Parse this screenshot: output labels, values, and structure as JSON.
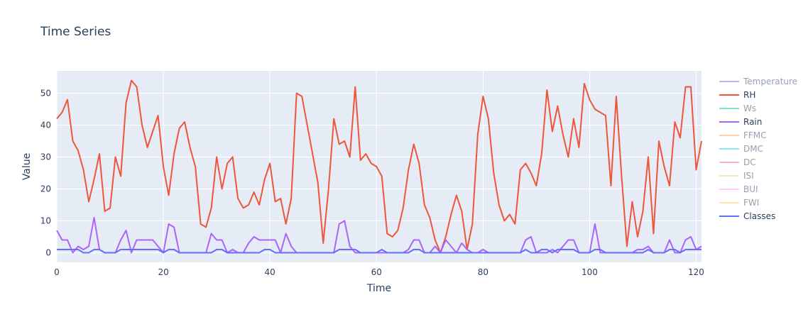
{
  "chart_data": {
    "type": "line",
    "title": "Time Series",
    "xlabel": "Time",
    "ylabel": "Value",
    "xlim": [
      0,
      121
    ],
    "ylim": [
      -3,
      57
    ],
    "xticks": [
      0,
      20,
      40,
      60,
      80,
      100,
      120
    ],
    "yticks": [
      0,
      10,
      20,
      30,
      40,
      50
    ],
    "grid": true,
    "legend_position": "right",
    "series": [
      {
        "name": "Temperature",
        "color": "#636efa",
        "visible": false,
        "values": []
      },
      {
        "name": "RH",
        "color": "#ef553b",
        "visible": true,
        "values": [
          42,
          44,
          48,
          35,
          32,
          26,
          16,
          23,
          31,
          13,
          14,
          30,
          24,
          47,
          54,
          52,
          40,
          33,
          38,
          43,
          27,
          18,
          31,
          39,
          41,
          33,
          27,
          9,
          8,
          14,
          30,
          20,
          28,
          30,
          17,
          14,
          15,
          19,
          15,
          23,
          28,
          16,
          17,
          9,
          17,
          50,
          49,
          40,
          31,
          22,
          3,
          20,
          42,
          34,
          35,
          30,
          52,
          29,
          31,
          28,
          27,
          24,
          6,
          5,
          7,
          14,
          26,
          34,
          28,
          15,
          11,
          4,
          0,
          5,
          12,
          18,
          13,
          1,
          9,
          37,
          49,
          42,
          25,
          15,
          10,
          12,
          9,
          26,
          28,
          25,
          21,
          31,
          51,
          38,
          46,
          37,
          30,
          42,
          33,
          53,
          48,
          45,
          44,
          43,
          21,
          49,
          24,
          2,
          16,
          5,
          13,
          30,
          6,
          35,
          27,
          21,
          41,
          36,
          52,
          52,
          26,
          35
        ]
      },
      {
        "name": "Ws",
        "color": "#00cc96",
        "visible": false,
        "values": []
      },
      {
        "name": "Rain",
        "color": "#ab63fa",
        "visible": true,
        "values": [
          7,
          4,
          4,
          0,
          2,
          1,
          2,
          11,
          1,
          0,
          0,
          0,
          4,
          7,
          0,
          4,
          4,
          4,
          4,
          2,
          0,
          9,
          8,
          0,
          0,
          0,
          0,
          0,
          0,
          6,
          4,
          4,
          0,
          1,
          0,
          0,
          3,
          5,
          4,
          4,
          4,
          4,
          0,
          6,
          2,
          0,
          0,
          0,
          0,
          0,
          0,
          0,
          0,
          9,
          10,
          2,
          0,
          0,
          0,
          0,
          0,
          0,
          0,
          0,
          0,
          0,
          1,
          4,
          4,
          0,
          0,
          2,
          0,
          4,
          2,
          0,
          3,
          1,
          0,
          0,
          1,
          0,
          0,
          0,
          0,
          0,
          0,
          0,
          4,
          5,
          0,
          0,
          0,
          1,
          0,
          2,
          4,
          4,
          0,
          0,
          0,
          9,
          0,
          0,
          0,
          0,
          0,
          0,
          0,
          1,
          1,
          2,
          0,
          0,
          0,
          4,
          0,
          0,
          4,
          5,
          1,
          2
        ]
      },
      {
        "name": "FFMC",
        "color": "#ffa15a",
        "visible": false,
        "values": []
      },
      {
        "name": "DMC",
        "color": "#19d3f3",
        "visible": false,
        "values": []
      },
      {
        "name": "DC",
        "color": "#ff6692",
        "visible": false,
        "values": []
      },
      {
        "name": "ISI",
        "color": "#b6e880",
        "visible": false,
        "values": []
      },
      {
        "name": "BUI",
        "color": "#ff97ff",
        "visible": false,
        "values": []
      },
      {
        "name": "FWI",
        "color": "#fecb52",
        "visible": false,
        "values": []
      },
      {
        "name": "Classes",
        "color": "#636efa",
        "visible": true,
        "values": [
          1,
          1,
          1,
          1,
          1,
          0,
          0,
          1,
          1,
          0,
          0,
          0,
          1,
          1,
          1,
          1,
          1,
          1,
          1,
          1,
          0,
          1,
          1,
          0,
          0,
          0,
          0,
          0,
          0,
          0,
          1,
          1,
          0,
          0,
          0,
          0,
          0,
          0,
          0,
          1,
          1,
          0,
          0,
          0,
          0,
          0,
          0,
          0,
          0,
          0,
          0,
          0,
          0,
          1,
          1,
          1,
          1,
          0,
          0,
          0,
          0,
          1,
          0,
          0,
          0,
          0,
          0,
          1,
          1,
          0,
          0,
          0,
          0,
          0,
          0,
          0,
          0,
          0,
          0,
          0,
          0,
          0,
          0,
          0,
          0,
          0,
          0,
          0,
          1,
          0,
          0,
          1,
          1,
          0,
          1,
          1,
          1,
          1,
          0,
          0,
          0,
          1,
          1,
          0,
          0,
          0,
          0,
          0,
          0,
          0,
          0,
          1,
          0,
          0,
          0,
          1,
          1,
          0,
          1,
          1,
          1,
          1
        ]
      }
    ]
  }
}
